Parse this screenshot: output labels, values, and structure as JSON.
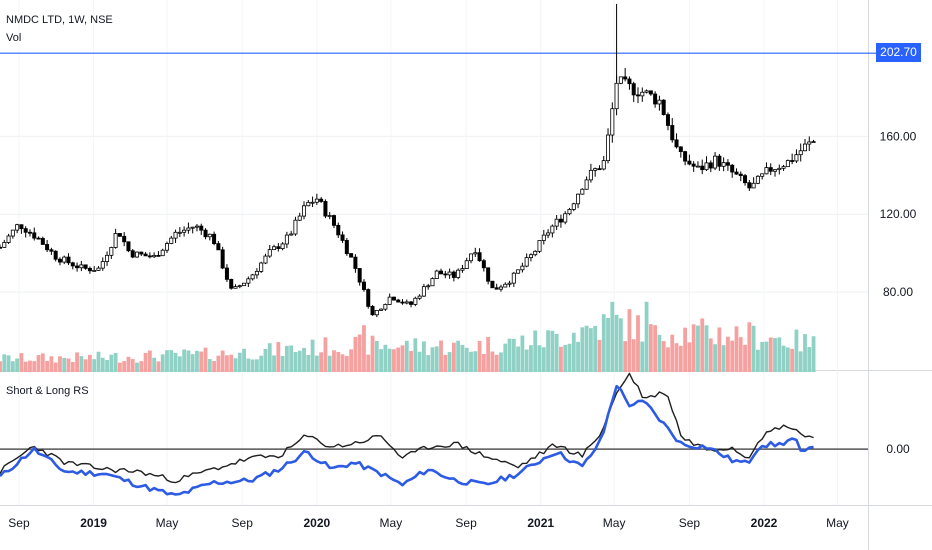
{
  "header": {
    "title": "NMDC LTD, 1W, NSE",
    "vol_label": "Vol"
  },
  "indicator": {
    "title": "Short & Long RS"
  },
  "colors": {
    "up": "#26a69a",
    "down": "#ef5350",
    "candle": "#000000",
    "rs_short": "#2d5be3",
    "rs_long": "#1f1f1f",
    "hline": "#2962ff",
    "vol_up": "#8fd1c5",
    "vol_down": "#f4a1a0"
  },
  "chart_data": [
    {
      "type": "candlestick",
      "title": "NMDC LTD, 1W, NSE",
      "yaxis_ticks": [
        80,
        120,
        160
      ],
      "yaxis_tick_labels": [
        "80.00",
        "120.00",
        "160.00"
      ],
      "ylim": [
        40,
        230
      ],
      "xaxis_tick_labels": [
        "Sep",
        "2019",
        "May",
        "Sep",
        "2020",
        "May",
        "Sep",
        "2021",
        "May",
        "Sep",
        "2022",
        "May"
      ],
      "horizontal_line": {
        "value": 202.7,
        "label": "202.70"
      },
      "close_path_anchors": [
        [
          "2018-08-01",
          103
        ],
        [
          "2018-09-01",
          115
        ],
        [
          "2018-10-01",
          108
        ],
        [
          "2018-11-01",
          98
        ],
        [
          "2018-12-15",
          92
        ],
        [
          "2019-01-10",
          92
        ],
        [
          "2019-02-10",
          112
        ],
        [
          "2019-03-01",
          100
        ],
        [
          "2019-04-10",
          98
        ],
        [
          "2019-05-15",
          110
        ],
        [
          "2019-06-15",
          114
        ],
        [
          "2019-07-15",
          108
        ],
        [
          "2019-08-15",
          80
        ],
        [
          "2019-09-15",
          88
        ],
        [
          "2019-10-15",
          100
        ],
        [
          "2019-11-15",
          108
        ],
        [
          "2019-12-15",
          125
        ],
        [
          "2020-01-01",
          128
        ],
        [
          "2020-02-01",
          113
        ],
        [
          "2020-03-01",
          95
        ],
        [
          "2020-04-01",
          68
        ],
        [
          "2020-05-01",
          78
        ],
        [
          "2020-06-01",
          73
        ],
        [
          "2020-07-15",
          90
        ],
        [
          "2020-08-15",
          88
        ],
        [
          "2020-09-15",
          103
        ],
        [
          "2020-10-15",
          81
        ],
        [
          "2020-11-15",
          87
        ],
        [
          "2020-12-20",
          100
        ],
        [
          "2021-01-15",
          112
        ],
        [
          "2021-02-15",
          122
        ],
        [
          "2021-03-15",
          138
        ],
        [
          "2021-04-15",
          147
        ],
        [
          "2021-05-05",
          188
        ],
        [
          "2021-05-25",
          185
        ],
        [
          "2021-06-15",
          183
        ],
        [
          "2021-07-15",
          178
        ],
        [
          "2021-08-15",
          150
        ],
        [
          "2021-09-15",
          143
        ],
        [
          "2021-10-15",
          148
        ],
        [
          "2021-11-15",
          140
        ],
        [
          "2021-12-10",
          133
        ],
        [
          "2022-01-10",
          143
        ],
        [
          "2022-02-10",
          147
        ],
        [
          "2022-03-10",
          155
        ],
        [
          "2022-03-28",
          158
        ]
      ],
      "volume_path_anchors": [
        [
          "2018-08-01",
          0.15
        ],
        [
          "2019-01-01",
          0.16
        ],
        [
          "2019-08-01",
          0.2
        ],
        [
          "2020-03-01",
          0.3
        ],
        [
          "2020-09-01",
          0.28
        ],
        [
          "2021-01-01",
          0.35
        ],
        [
          "2021-05-01",
          0.55
        ],
        [
          "2021-08-01",
          0.45
        ],
        [
          "2022-01-01",
          0.4
        ],
        [
          "2022-03-28",
          0.3
        ]
      ],
      "volume_spikes": [
        [
          "2020-03-20",
          0.52
        ],
        [
          "2021-05-01",
          0.78
        ],
        [
          "2021-06-25",
          0.78
        ],
        [
          "2021-07-05",
          0.52
        ]
      ]
    },
    {
      "type": "line",
      "title": "Short & Long RS",
      "yaxis_tick_labels": [
        "0.00"
      ],
      "ylim": [
        -0.5,
        0.7
      ],
      "series": [
        {
          "key": "short",
          "anchors": [
            [
              "2018-08-01",
              -0.25
            ],
            [
              "2018-09-25",
              0.0
            ],
            [
              "2018-11-15",
              -0.2
            ],
            [
              "2019-01-20",
              -0.22
            ],
            [
              "2019-03-15",
              -0.32
            ],
            [
              "2019-05-15",
              -0.42
            ],
            [
              "2019-07-15",
              -0.3
            ],
            [
              "2019-09-15",
              -0.28
            ],
            [
              "2019-11-01",
              -0.18
            ],
            [
              "2019-12-15",
              -0.02
            ],
            [
              "2020-01-25",
              -0.18
            ],
            [
              "2020-03-01",
              -0.12
            ],
            [
              "2020-04-15",
              -0.22
            ],
            [
              "2020-05-20",
              -0.32
            ],
            [
              "2020-07-01",
              -0.18
            ],
            [
              "2020-08-15",
              -0.28
            ],
            [
              "2020-10-01",
              -0.32
            ],
            [
              "2020-11-25",
              -0.22
            ],
            [
              "2021-01-25",
              -0.02
            ],
            [
              "2021-03-10",
              -0.16
            ],
            [
              "2021-04-10",
              0.08
            ],
            [
              "2021-05-05",
              0.58
            ],
            [
              "2021-05-25",
              0.4
            ],
            [
              "2021-06-20",
              0.42
            ],
            [
              "2021-07-25",
              0.2
            ],
            [
              "2021-08-20",
              0.04
            ],
            [
              "2021-10-01",
              0.02
            ],
            [
              "2021-11-10",
              -0.1
            ],
            [
              "2021-12-05",
              -0.13
            ],
            [
              "2021-12-25",
              0.04
            ],
            [
              "2022-01-25",
              0.04
            ],
            [
              "2022-02-20",
              0.1
            ],
            [
              "2022-03-05",
              -0.06
            ],
            [
              "2022-03-28",
              0.07
            ]
          ]
        },
        {
          "key": "long",
          "anchors": [
            [
              "2018-08-01",
              -0.2
            ],
            [
              "2018-09-25",
              0.03
            ],
            [
              "2018-11-15",
              -0.12
            ],
            [
              "2019-01-20",
              -0.18
            ],
            [
              "2019-03-15",
              -0.2
            ],
            [
              "2019-05-15",
              -0.28
            ],
            [
              "2019-07-15",
              -0.18
            ],
            [
              "2019-09-15",
              -0.08
            ],
            [
              "2019-11-01",
              -0.06
            ],
            [
              "2019-12-15",
              0.12
            ],
            [
              "2020-01-25",
              0.02
            ],
            [
              "2020-03-01",
              0.05
            ],
            [
              "2020-04-15",
              0.12
            ],
            [
              "2020-05-20",
              -0.08
            ],
            [
              "2020-07-01",
              0.02
            ],
            [
              "2020-08-15",
              0.05
            ],
            [
              "2020-10-01",
              -0.06
            ],
            [
              "2020-11-25",
              -0.16
            ],
            [
              "2021-01-25",
              0.04
            ],
            [
              "2021-03-10",
              -0.06
            ],
            [
              "2021-04-10",
              0.15
            ],
            [
              "2021-05-05",
              0.5
            ],
            [
              "2021-05-25",
              0.68
            ],
            [
              "2021-06-20",
              0.45
            ],
            [
              "2021-07-25",
              0.52
            ],
            [
              "2021-08-20",
              0.1
            ],
            [
              "2021-10-01",
              0.0
            ],
            [
              "2021-11-10",
              0.02
            ],
            [
              "2021-12-05",
              -0.08
            ],
            [
              "2021-12-25",
              0.1
            ],
            [
              "2022-01-25",
              0.2
            ],
            [
              "2022-02-20",
              0.2
            ],
            [
              "2022-03-05",
              0.12
            ],
            [
              "2022-03-28",
              0.1
            ]
          ]
        }
      ]
    }
  ]
}
